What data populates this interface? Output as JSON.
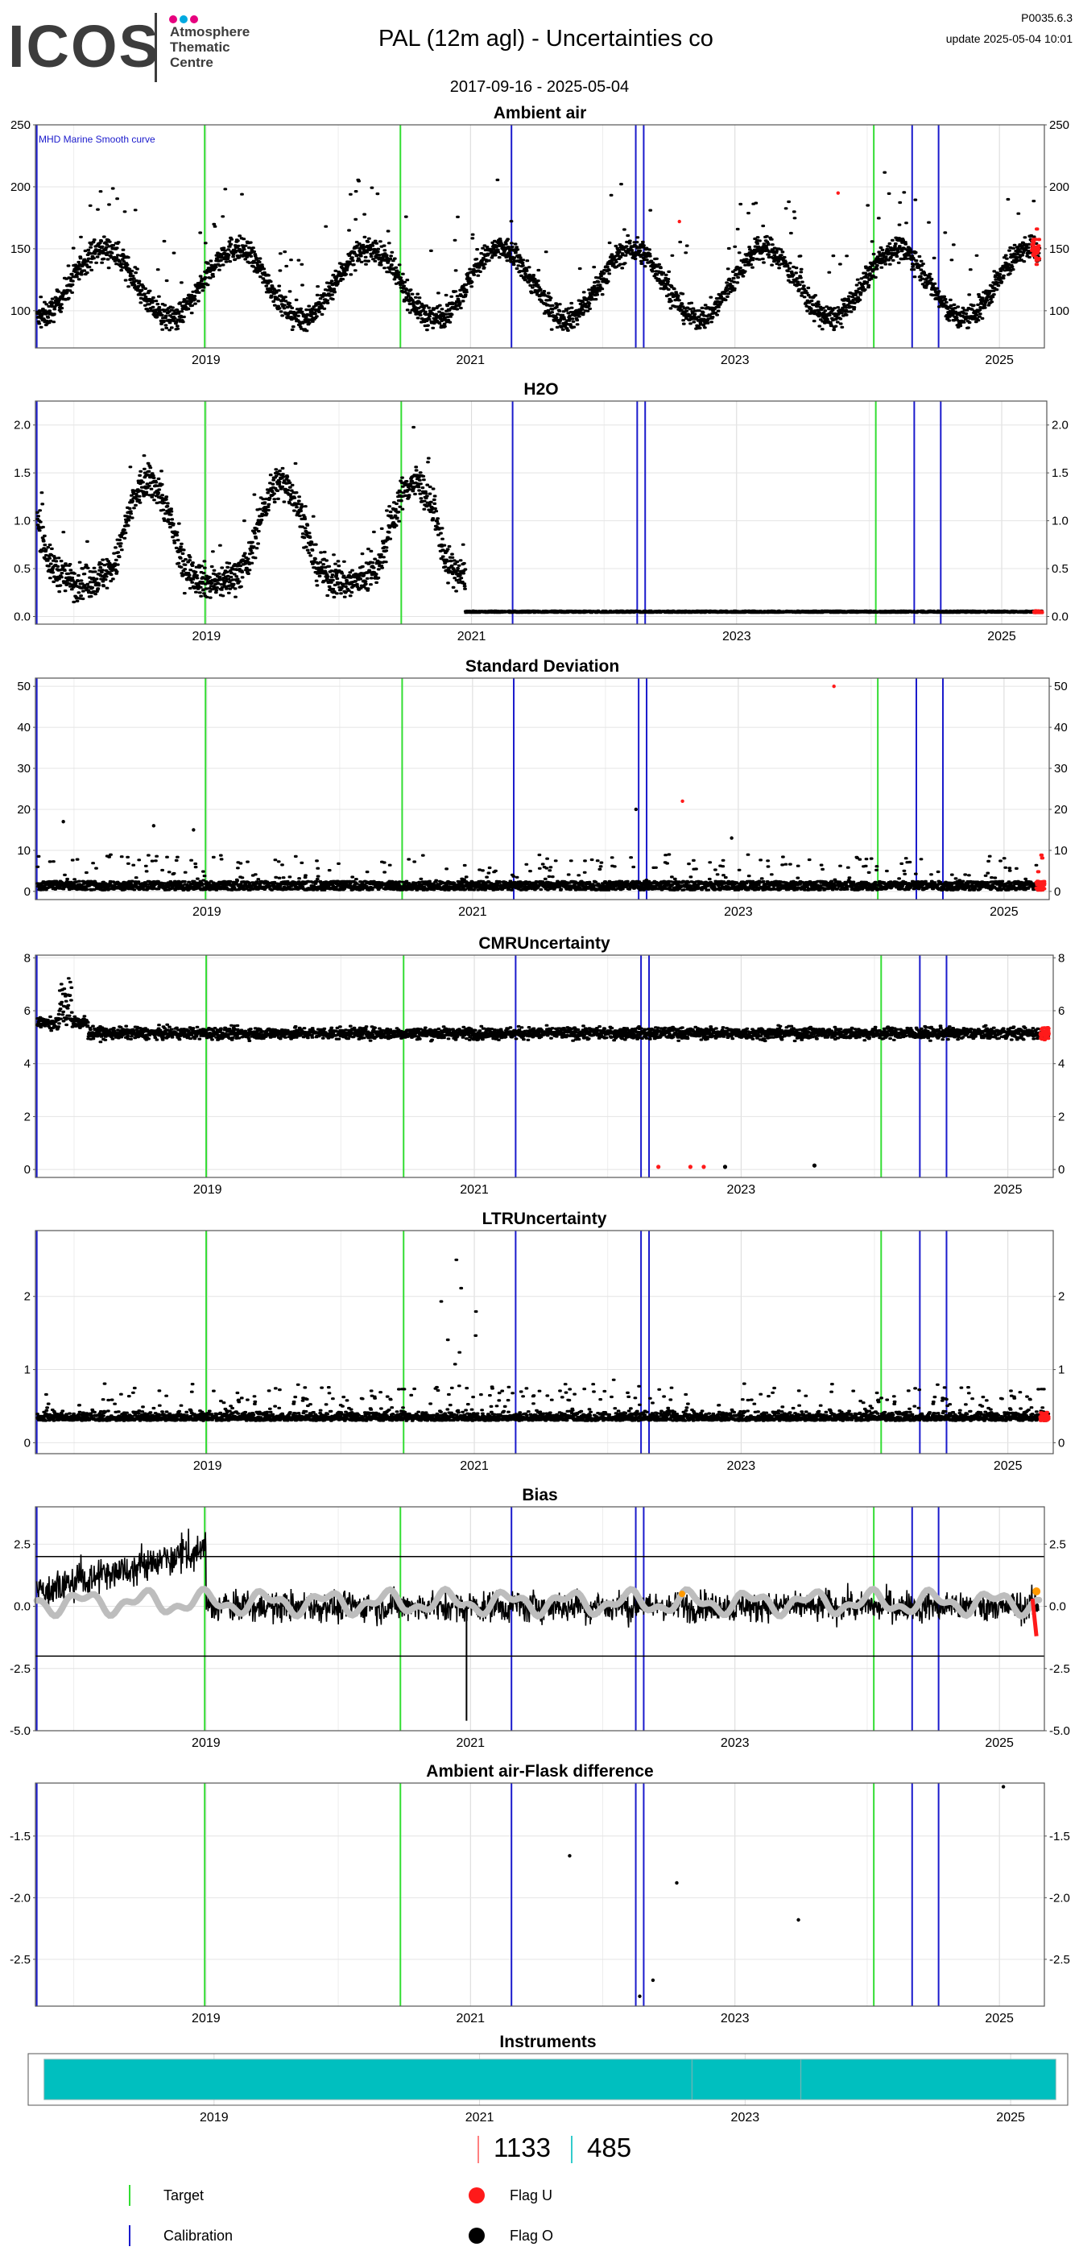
{
  "header": {
    "logo_text": "ICOS",
    "logo_subtitle": [
      "Atmosphere",
      "Thematic",
      "Centre"
    ],
    "title": "PAL  (12m agl) - Uncertainties co",
    "version": "P0035.6.3",
    "update": "update  2025-05-04 10:01",
    "date_range": "2017-09-16 - 2025-05-04",
    "logo_dot_colors": [
      "#e6007e",
      "#00a9e0",
      "#e6007e"
    ]
  },
  "colors": {
    "data": "#000000",
    "flag_u": "#ff1a1a",
    "target_line": "#33dd33",
    "calibration_line": "#1a1acc",
    "smooth_curve": "#bdbdbd",
    "flask_orange": "#ff9900",
    "instrument_bar": "#00bfbf",
    "count_red_bar": "#ff8080",
    "count_cyan_bar": "#33cccc"
  },
  "events": {
    "target": [
      2018.99,
      2020.47,
      2024.05
    ],
    "calibration": [
      2017.72,
      2021.31,
      2022.25,
      2022.31,
      2024.34,
      2024.54
    ]
  },
  "chart_data": [
    {
      "id": "ambient",
      "type": "scatter",
      "title": "Ambient air",
      "annotation": "MHD Marine Smooth curve",
      "ylim": [
        70,
        250
      ],
      "yticks": [
        100,
        150,
        200,
        250
      ],
      "xlim": [
        2017.71,
        2025.34
      ],
      "xticks": [
        2019,
        2021,
        2023,
        2025
      ],
      "model": "co",
      "outliers": [
        [
          2023.78,
          195
        ],
        [
          2022.58,
          172
        ]
      ]
    },
    {
      "id": "h2o",
      "type": "scatter",
      "title": "H2O",
      "ylim": [
        -0.08,
        2.25
      ],
      "yticks": [
        0.0,
        0.5,
        1.0,
        1.5,
        2.0
      ],
      "ytick_labels": [
        "0.0",
        "0.5",
        "1.0",
        "1.5",
        "2.0"
      ],
      "xlim": [
        2017.71,
        2025.34
      ],
      "xticks": [
        2019,
        2021,
        2023,
        2025
      ],
      "model": "h2o"
    },
    {
      "id": "sd",
      "type": "scatter",
      "title": "Standard Deviation",
      "ylim": [
        -2,
        52
      ],
      "yticks": [
        0,
        10,
        20,
        30,
        40,
        50
      ],
      "xlim": [
        2017.71,
        2025.34
      ],
      "xticks": [
        2019,
        2021,
        2023,
        2025
      ],
      "model": "sd",
      "outliers": [
        [
          2017.92,
          17
        ],
        [
          2018.6,
          16
        ],
        [
          2018.9,
          15
        ],
        [
          2022.23,
          20
        ],
        [
          2022.58,
          22
        ],
        [
          2023.72,
          50
        ],
        [
          2022.95,
          13
        ]
      ]
    },
    {
      "id": "cmr",
      "type": "scatter",
      "title": "CMRUncertainty",
      "ylim": [
        -0.3,
        8.1
      ],
      "yticks": [
        0,
        2,
        4,
        6,
        8
      ],
      "xlim": [
        2017.71,
        2025.34
      ],
      "xticks": [
        2019,
        2021,
        2023,
        2025
      ],
      "model": "cmr",
      "low_points": [
        [
          2022.38,
          0.1
        ],
        [
          2022.62,
          0.1
        ],
        [
          2022.72,
          0.1
        ],
        [
          2022.88,
          0.1
        ],
        [
          2023.55,
          0.15
        ]
      ]
    },
    {
      "id": "ltr",
      "type": "scatter",
      "title": "LTRUncertainty",
      "ylim": [
        -0.15,
        2.9
      ],
      "yticks": [
        0,
        1,
        2
      ],
      "xlim": [
        2017.71,
        2025.34
      ],
      "xticks": [
        2019,
        2021,
        2023,
        2025
      ],
      "model": "ltr"
    },
    {
      "id": "bias",
      "type": "line",
      "title": "Bias",
      "ylim": [
        -5.0,
        4.0
      ],
      "yticks": [
        -5.0,
        -2.5,
        0.0,
        2.5
      ],
      "ytick_labels": [
        "-5.0",
        "-2.5",
        "0.0",
        "2.5"
      ],
      "hlines": [
        2,
        -2
      ],
      "xlim": [
        2017.71,
        2025.34
      ],
      "xticks": [
        2019,
        2021,
        2023,
        2025
      ],
      "model": "bias"
    },
    {
      "id": "flask",
      "type": "scatter",
      "title": "Ambient air-Flask difference",
      "ylim": [
        -2.88,
        -1.07
      ],
      "yticks": [
        -2.5,
        -2.0,
        -1.5
      ],
      "ytick_labels": [
        "-2.5",
        "-2.0",
        "-1.5"
      ],
      "xlim": [
        2017.71,
        2025.34
      ],
      "xticks": [
        2019,
        2021,
        2023,
        2025
      ],
      "points": [
        [
          2021.75,
          -1.66
        ],
        [
          2022.56,
          -1.88
        ],
        [
          2023.48,
          -2.18
        ],
        [
          2022.38,
          -2.67
        ],
        [
          2022.28,
          -2.8
        ],
        [
          2025.03,
          -1.1
        ]
      ]
    },
    {
      "id": "instruments",
      "type": "bar",
      "title": "Instruments",
      "xlim": [
        2017.6,
        2025.43
      ],
      "xticks": [
        2019,
        2021,
        2023,
        2025
      ],
      "segments": [
        [
          2017.72,
          2022.6
        ],
        [
          2022.6,
          2023.42
        ],
        [
          2023.42,
          2025.34
        ]
      ]
    }
  ],
  "counts": {
    "red_count": "1133",
    "cyan_count": "485"
  },
  "legend": {
    "target_label": "Target",
    "calibration_label": "Calibration",
    "flag_u_label": "Flag U",
    "flag_o_label": "Flag O"
  }
}
